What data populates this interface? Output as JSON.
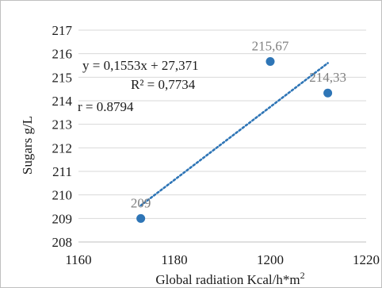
{
  "chart_data": {
    "type": "scatter",
    "xlabel": "Global radiation Kcal/h*m",
    "xlabel_sup": "2",
    "ylabel": "Sugars g/L",
    "xlim": [
      1160,
      1220
    ],
    "ylim": [
      208,
      217
    ],
    "x_ticks": [
      "1160",
      "1180",
      "1200",
      "1220"
    ],
    "y_ticks": [
      "208",
      "209",
      "210",
      "211",
      "212",
      "213",
      "214",
      "215",
      "216",
      "217"
    ],
    "grid": "horizontal",
    "points": [
      {
        "x": 1173,
        "y": 209,
        "label": "209"
      },
      {
        "x": 1200,
        "y": 215.67,
        "label": "215,67"
      },
      {
        "x": 1212,
        "y": 214.33,
        "label": "214,33"
      }
    ],
    "trendline": {
      "slope": 0.1553,
      "intercept": 27.371,
      "x_start": 1173,
      "x_end": 1212,
      "y_start": 209.55,
      "y_end": 215.6
    },
    "annotations": {
      "equation": "y = 0,1553x + 27,371",
      "r_squared": "R² = 0,7734",
      "r": "r = 0.8794"
    },
    "colors": {
      "marker": "#2e75b6",
      "trendline": "#2e75b6",
      "grid": "#d9d9d9",
      "data_label": "#7f7f7f"
    }
  }
}
